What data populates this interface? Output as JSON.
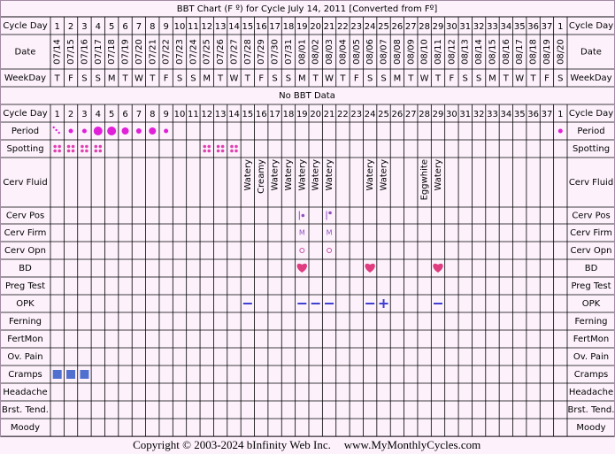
{
  "title": "BBT Chart (F º) for Cycle July 14, 2011  [Converted from Fº]",
  "cycle_day_label": "Cycle Day",
  "cycle_days": [
    1,
    2,
    3,
    4,
    5,
    6,
    7,
    8,
    9,
    10,
    11,
    12,
    13,
    14,
    15,
    16,
    17,
    18,
    19,
    20,
    21,
    22,
    23,
    24,
    25,
    26,
    27,
    28,
    29,
    30,
    31,
    32,
    33,
    34,
    35,
    36,
    37,
    1
  ],
  "date_label": "Date",
  "dates": [
    "07/14",
    "07/15",
    "07/16",
    "07/17",
    "07/18",
    "07/19",
    "07/20",
    "07/21",
    "07/22",
    "07/23",
    "07/24",
    "07/25",
    "07/26",
    "07/27",
    "07/28",
    "07/29",
    "07/30",
    "07/31",
    "08/01",
    "08/02",
    "08/03",
    "08/04",
    "08/05",
    "08/06",
    "08/07",
    "08/08",
    "08/09",
    "08/10",
    "08/11",
    "08/12",
    "08/13",
    "08/14",
    "08/15",
    "08/16",
    "08/17",
    "08/18",
    "08/19",
    "08/20"
  ],
  "weekday_label": "WeekDay",
  "weekdays": [
    "T",
    "F",
    "S",
    "S",
    "M",
    "T",
    "W",
    "T",
    "F",
    "S",
    "S",
    "M",
    "T",
    "W",
    "T",
    "F",
    "S",
    "S",
    "M",
    "T",
    "W",
    "T",
    "F",
    "S",
    "S",
    "M",
    "T",
    "W",
    "T",
    "F",
    "S",
    "S",
    "M",
    "T",
    "W",
    "T",
    "F",
    "S"
  ],
  "no_data": "No BBT Data",
  "rows": [
    {
      "label": "Period"
    },
    {
      "label": "Spotting"
    },
    {
      "label": "Cerv Fluid",
      "cells": [
        null,
        null,
        null,
        null,
        null,
        null,
        null,
        null,
        null,
        null,
        null,
        null,
        null,
        null,
        "Watery",
        "Creamy",
        "Watery",
        "Watery",
        "Watery",
        "Watery",
        "Watery",
        null,
        null,
        "Watery",
        "Watery",
        null,
        null,
        "Eggwhite",
        "Watery",
        null,
        null,
        null,
        null,
        null,
        null,
        null,
        null,
        null
      ]
    },
    {
      "label": "Cerv Pos"
    },
    {
      "label": "Cerv Firm",
      "cells": [
        null,
        null,
        null,
        null,
        null,
        null,
        null,
        null,
        null,
        null,
        null,
        null,
        null,
        null,
        null,
        null,
        null,
        null,
        "M",
        null,
        "M",
        null,
        null,
        null,
        null,
        null,
        null,
        null,
        null,
        null,
        null,
        null,
        null,
        null,
        null,
        null,
        null,
        null
      ]
    },
    {
      "label": "Cerv Opn"
    },
    {
      "label": "BD"
    },
    {
      "label": "Preg Test"
    },
    {
      "label": "OPK"
    },
    {
      "label": "Ferning"
    },
    {
      "label": "FertMon"
    },
    {
      "label": "Ov. Pain"
    },
    {
      "label": "Cramps"
    },
    {
      "label": "Headache"
    },
    {
      "label": "Brst. Tend."
    },
    {
      "label": "Moody"
    }
  ],
  "footer": {
    "copyright": "Copyright © 2003-2024 bInfinity Web Inc.",
    "site": "www.MyMonthlyCycles.com"
  }
}
